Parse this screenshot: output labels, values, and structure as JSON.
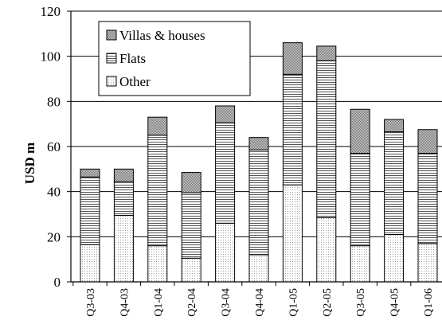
{
  "chart_data": {
    "type": "bar",
    "stacked": true,
    "categories": [
      "Q3-03",
      "Q4-03",
      "Q1-04",
      "Q2-04",
      "Q3-04",
      "Q4-04",
      "Q1-05",
      "Q2-05",
      "Q3-05",
      "Q4-05",
      "Q1-06"
    ],
    "series": [
      {
        "name": "Other",
        "values": [
          16.5,
          29.5,
          16,
          10.5,
          26,
          12,
          43,
          28.5,
          16,
          21,
          17
        ]
      },
      {
        "name": "Flats",
        "values": [
          30,
          15,
          49,
          29,
          44.5,
          46.5,
          49,
          69.5,
          41,
          45.5,
          40
        ]
      },
      {
        "name": "Villas & houses",
        "values": [
          3.5,
          5.5,
          8,
          9,
          7.5,
          5.5,
          14,
          6.5,
          19.5,
          5.5,
          10.5
        ]
      }
    ],
    "legend_order": [
      "Villas & houses",
      "Flats",
      "Other"
    ],
    "title": "",
    "xlabel": "",
    "ylabel": "USD m",
    "ylim": [
      0,
      120
    ],
    "yticks": [
      0,
      20,
      40,
      60,
      80,
      100,
      120
    ],
    "grid": true,
    "legend_position": "top-left",
    "colors": {
      "Other": "#f4f4f4",
      "Flats": "#d6d6d6",
      "Villas & houses": "#a9a9a9",
      "edge": "#000000",
      "grid": "#000000"
    }
  }
}
